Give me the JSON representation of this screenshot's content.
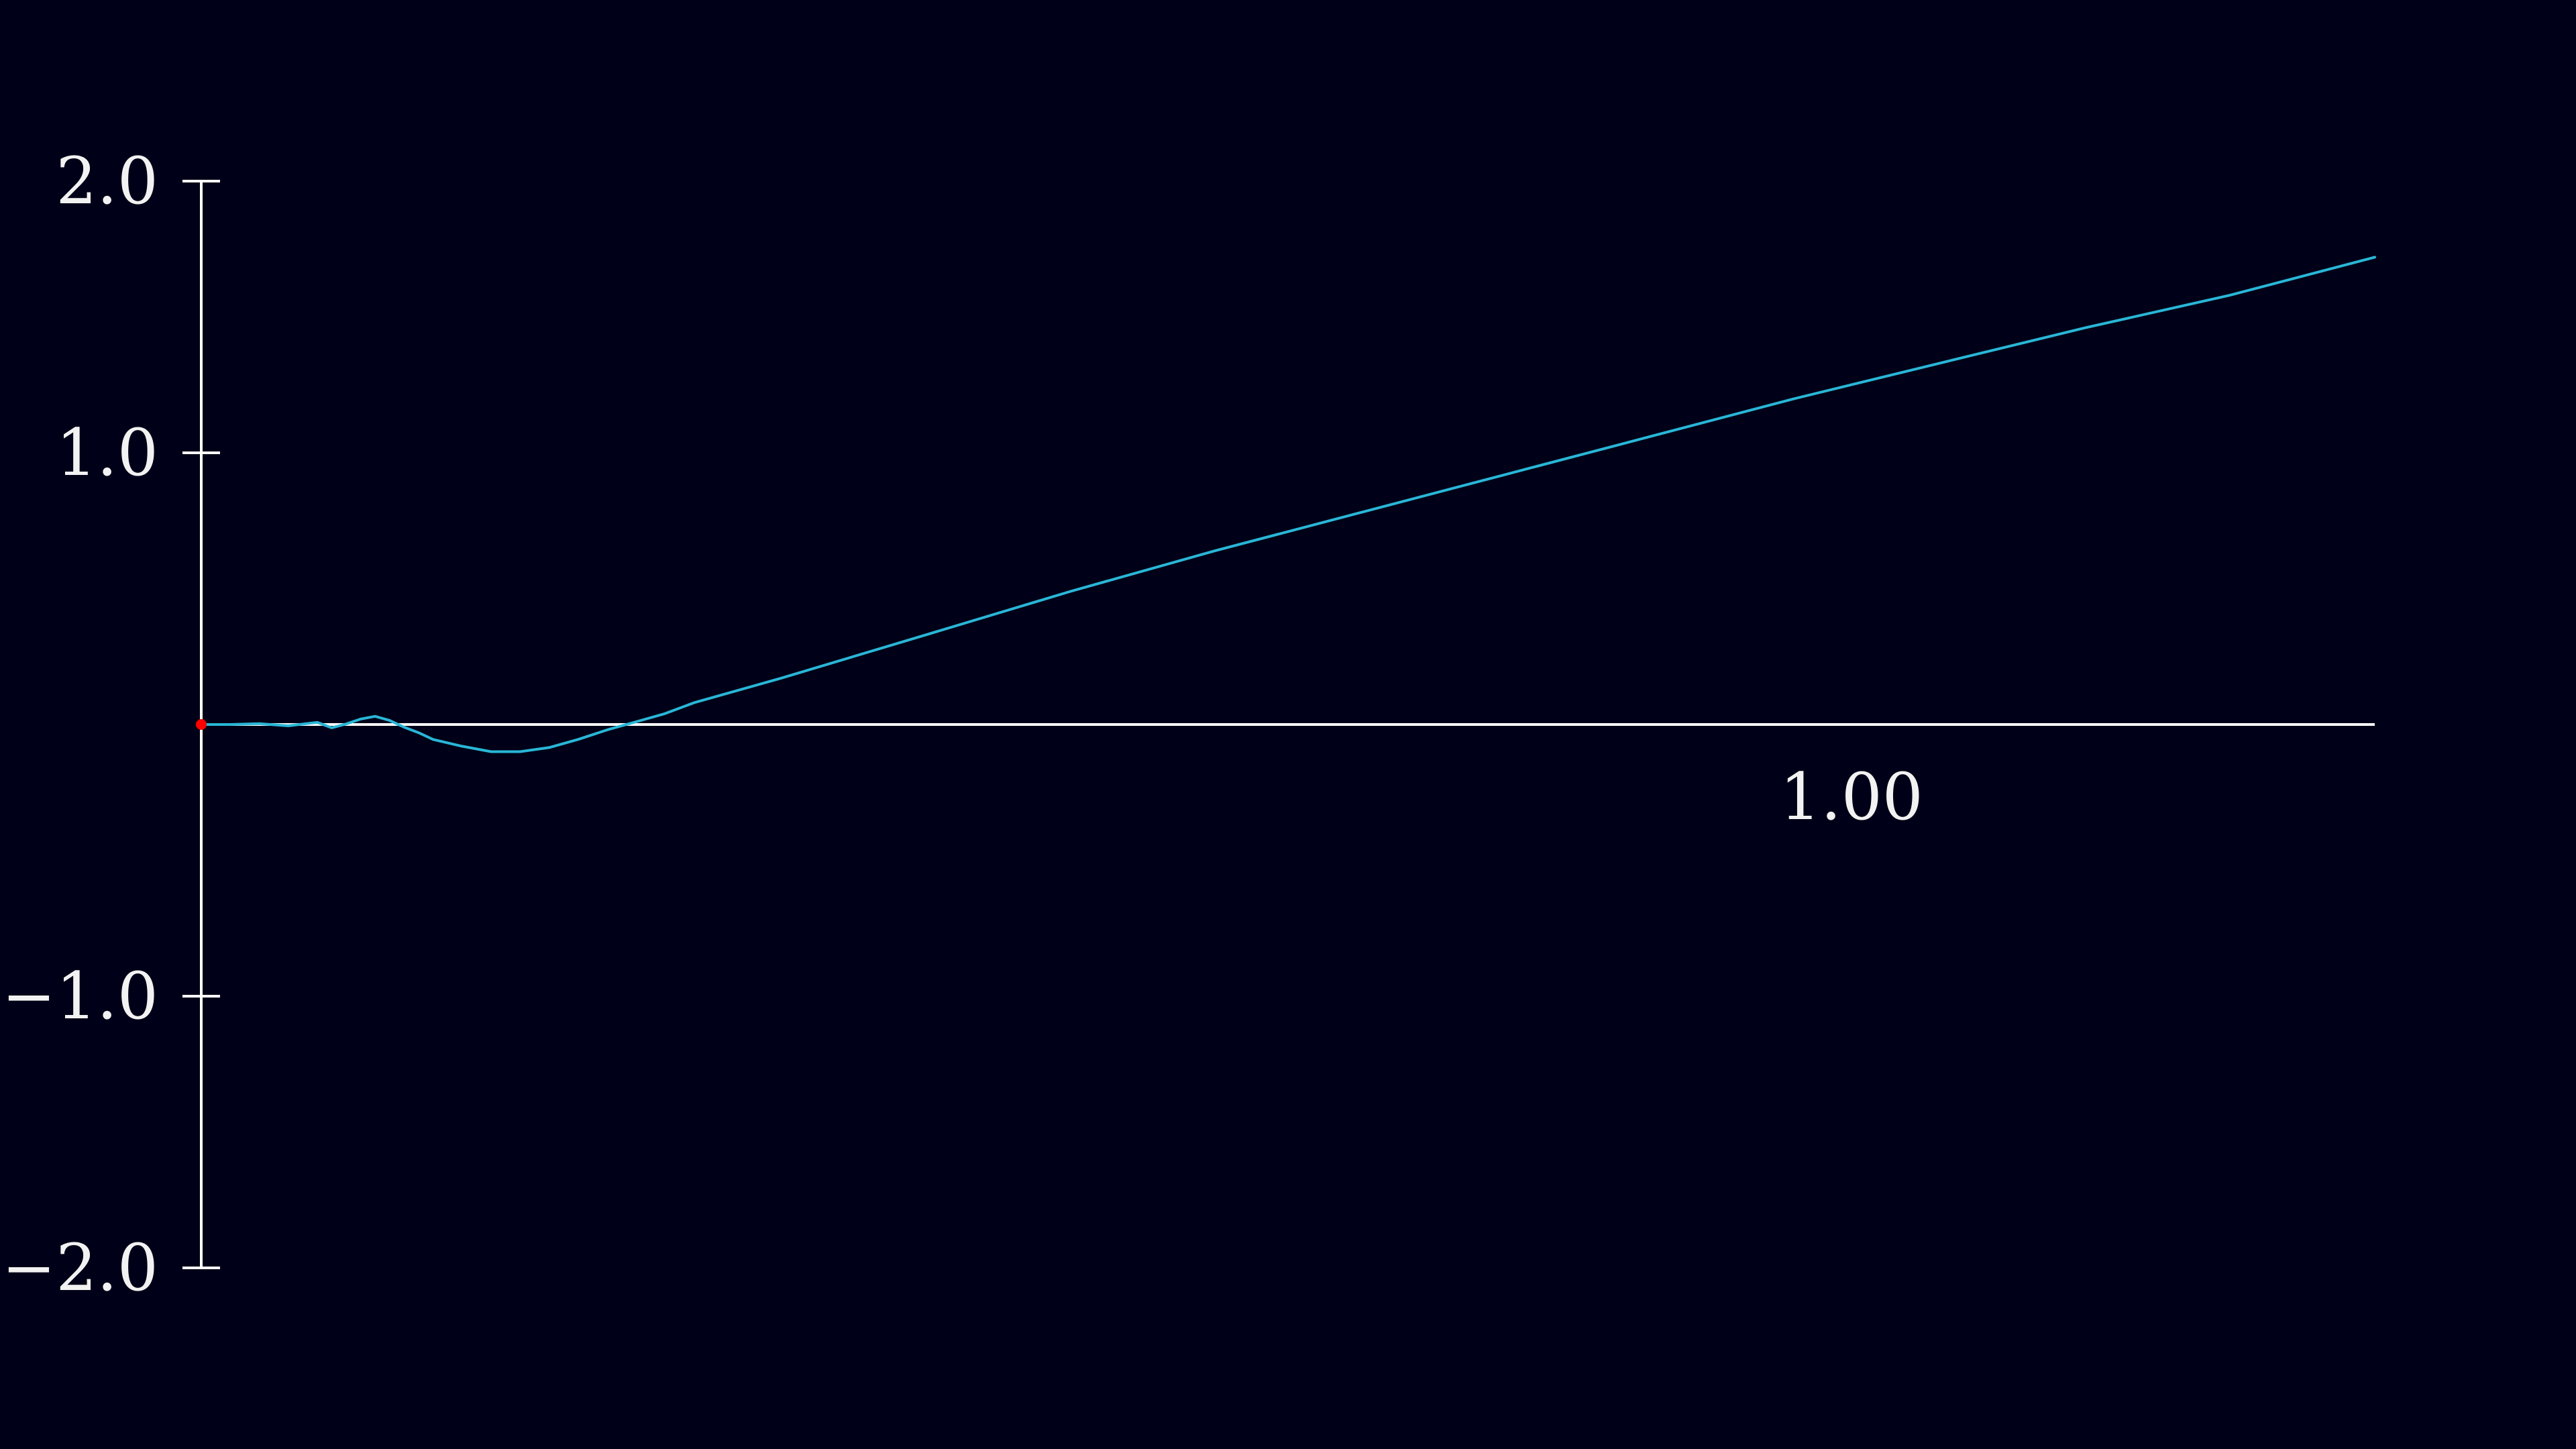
{
  "chart_data": {
    "type": "line",
    "title": "",
    "xlabel": "",
    "ylabel": "",
    "xlim": [
      0,
      1.5
    ],
    "ylim": [
      -2.0,
      2.0
    ],
    "x_ticks": [
      {
        "value": 1.0,
        "label": "1.00"
      }
    ],
    "y_ticks": [
      {
        "value": 2.0,
        "label": "2.0"
      },
      {
        "value": 1.0,
        "label": "1.0"
      },
      {
        "value": -1.0,
        "label": "−1.0"
      },
      {
        "value": -2.0,
        "label": "−2.0"
      }
    ],
    "grid": false,
    "series": [
      {
        "color": "#29b6d6",
        "x": [
          0,
          0.02,
          0.04,
          0.06,
          0.08,
          0.09,
          0.1,
          0.11,
          0.12,
          0.13,
          0.14,
          0.15,
          0.16,
          0.18,
          0.2,
          0.22,
          0.24,
          0.26,
          0.28,
          0.3,
          0.32,
          0.34,
          0.4,
          0.5,
          0.6,
          0.7,
          0.8,
          0.9,
          1.0,
          1.1,
          1.2,
          1.3,
          1.4,
          1.5
        ],
        "y": [
          0,
          0.0,
          0.003,
          -0.005,
          0.008,
          -0.012,
          0.002,
          0.02,
          0.03,
          0.015,
          -0.01,
          -0.03,
          -0.055,
          -0.08,
          -0.1,
          -0.1,
          -0.085,
          -0.055,
          -0.02,
          0.01,
          0.04,
          0.08,
          0.17,
          0.33,
          0.49,
          0.64,
          0.78,
          0.92,
          1.06,
          1.2,
          1.33,
          1.46,
          1.58,
          1.72
        ]
      }
    ],
    "markers": [
      {
        "x": 0,
        "y": 0,
        "color": "#ff0000"
      }
    ],
    "axis_color": "#ffffff",
    "background": "#000018"
  }
}
